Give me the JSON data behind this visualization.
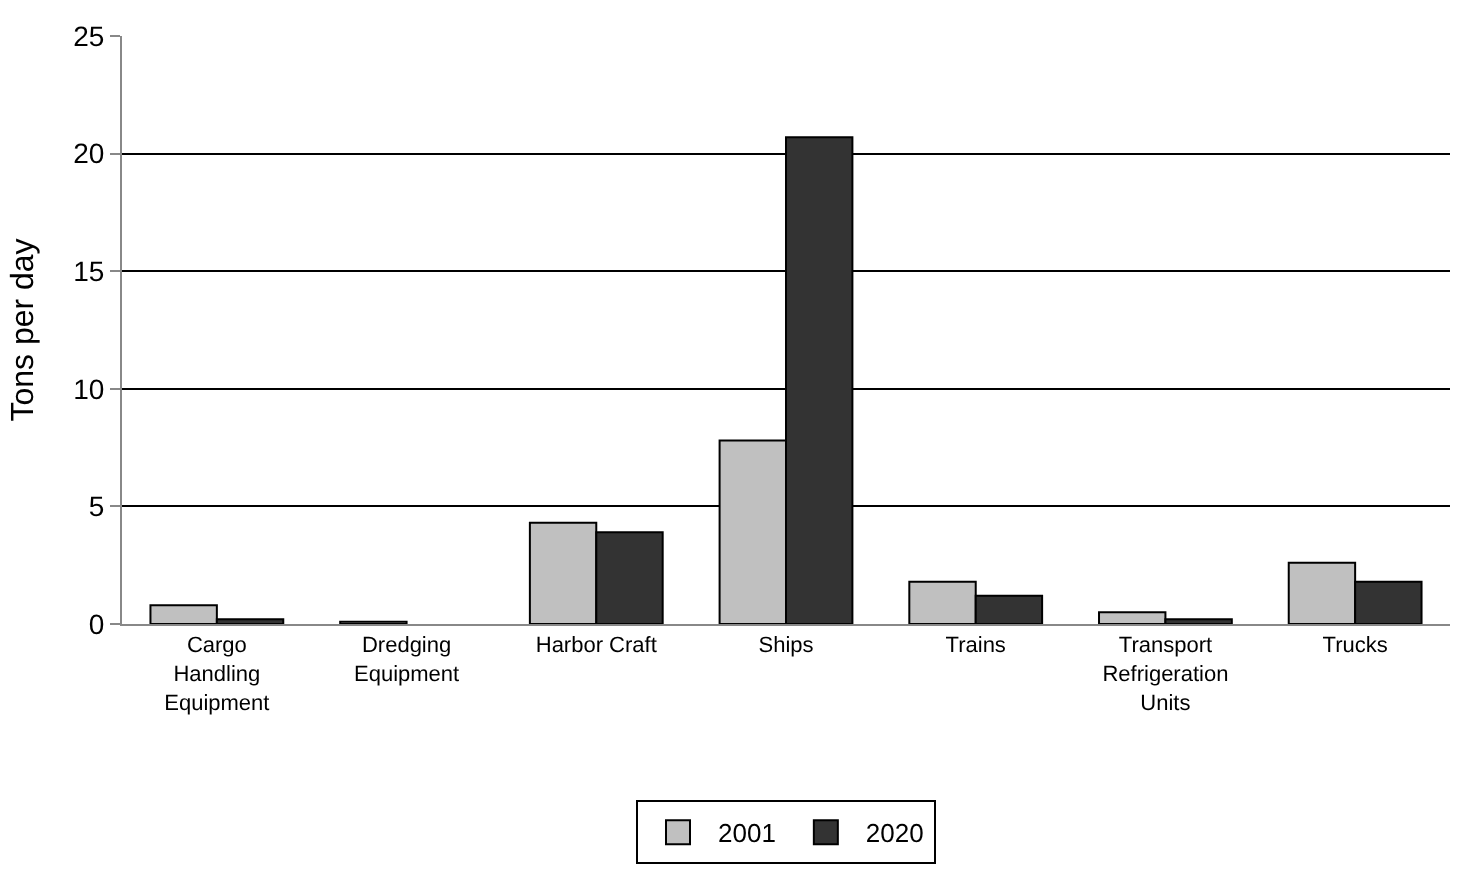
{
  "chart_data": {
    "type": "bar",
    "ylabel": "Tons per day",
    "categories": [
      "Cargo Handling Equipment",
      "Dredging Equipment",
      "Harbor Craft",
      "Ships",
      "Trains",
      "Transport Refrigeration Units",
      "Trucks"
    ],
    "series": [
      {
        "name": "2001",
        "color": "#c0c0c0",
        "values": [
          0.8,
          0.1,
          4.3,
          7.8,
          1.8,
          0.5,
          2.6
        ]
      },
      {
        "name": "2020",
        "color": "#333333",
        "values": [
          0.2,
          null,
          3.9,
          20.7,
          1.2,
          0.2,
          1.8
        ]
      }
    ],
    "ylim": [
      0,
      25
    ],
    "yticks": [
      0,
      5,
      10,
      15,
      20,
      25
    ],
    "grid": "y",
    "legend": "bottom"
  }
}
